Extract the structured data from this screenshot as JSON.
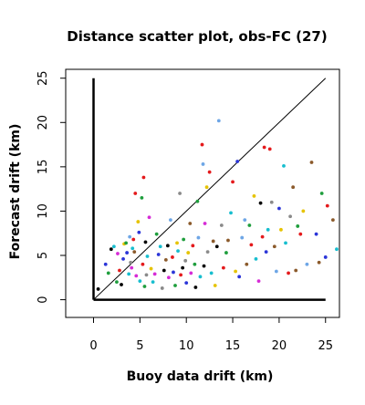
{
  "chart_data": {
    "type": "scatter",
    "title": "Distance scatter plot, obs-FC (27)",
    "xlabel": "Buoy data drift (km)",
    "ylabel": "Forecast drift (km)",
    "xlim": [
      -3,
      26.5
    ],
    "ylim": [
      -2,
      26
    ],
    "xticks": [
      0,
      5,
      10,
      15,
      20,
      25
    ],
    "yticks": [
      0,
      5,
      10,
      15,
      20,
      25
    ],
    "grid": false,
    "legend": "none",
    "reference_line": {
      "from": [
        0,
        0
      ],
      "to": [
        25,
        25
      ]
    },
    "axis_lines": [
      {
        "from": [
          0,
          0
        ],
        "to": [
          0,
          25
        ]
      },
      {
        "from": [
          0,
          0
        ],
        "to": [
          25,
          0
        ]
      }
    ],
    "colors": [
      "#000000",
      "#e41a1c",
      "#1f9e3d",
      "#2b35d8",
      "#17becf",
      "#d62bd6",
      "#e6c300",
      "#8a8a8a",
      "#6ea6e6",
      "#8b5a2b"
    ],
    "points": [
      [
        0.5,
        1.2,
        0
      ],
      [
        1.3,
        4.0,
        3
      ],
      [
        1.6,
        3.0,
        2
      ],
      [
        1.9,
        5.7,
        0
      ],
      [
        2.2,
        6.0,
        4
      ],
      [
        2.5,
        2.0,
        2
      ],
      [
        2.6,
        5.2,
        5
      ],
      [
        2.8,
        3.3,
        1
      ],
      [
        3.0,
        1.7,
        0
      ],
      [
        3.2,
        4.6,
        3
      ],
      [
        3.3,
        6.3,
        6
      ],
      [
        3.5,
        6.4,
        2
      ],
      [
        3.6,
        5.3,
        3
      ],
      [
        3.8,
        2.9,
        4
      ],
      [
        3.9,
        7.1,
        8
      ],
      [
        4.0,
        4.2,
        7
      ],
      [
        4.1,
        3.6,
        5
      ],
      [
        4.2,
        5.8,
        4
      ],
      [
        4.3,
        6.8,
        1
      ],
      [
        4.4,
        5.4,
        9
      ],
      [
        4.5,
        12.0,
        1
      ],
      [
        4.6,
        2.7,
        5
      ],
      [
        4.8,
        8.8,
        6
      ],
      [
        4.9,
        7.6,
        3
      ],
      [
        5.0,
        2.1,
        4
      ],
      [
        5.2,
        11.5,
        2
      ],
      [
        5.3,
        4.0,
        1
      ],
      [
        5.4,
        13.8,
        1
      ],
      [
        5.5,
        1.5,
        2
      ],
      [
        5.6,
        6.5,
        0
      ],
      [
        5.7,
        2.8,
        7
      ],
      [
        5.8,
        4.9,
        4
      ],
      [
        6.0,
        9.3,
        5
      ],
      [
        6.2,
        3.5,
        6
      ],
      [
        6.4,
        2.0,
        4
      ],
      [
        6.6,
        2.9,
        5
      ],
      [
        6.8,
        7.4,
        2
      ],
      [
        7.0,
        5.1,
        3
      ],
      [
        7.2,
        6.0,
        4
      ],
      [
        7.4,
        1.3,
        7
      ],
      [
        7.6,
        3.3,
        0
      ],
      [
        7.8,
        4.5,
        9
      ],
      [
        8.0,
        6.1,
        0
      ],
      [
        8.1,
        2.5,
        5
      ],
      [
        8.3,
        9.0,
        8
      ],
      [
        8.5,
        4.8,
        1
      ],
      [
        8.6,
        3.1,
        3
      ],
      [
        8.8,
        1.6,
        2
      ],
      [
        9.0,
        6.4,
        6
      ],
      [
        9.1,
        5.5,
        4
      ],
      [
        9.3,
        12.0,
        7
      ],
      [
        9.4,
        2.8,
        1
      ],
      [
        9.6,
        3.6,
        0
      ],
      [
        9.7,
        6.8,
        2
      ],
      [
        9.9,
        4.4,
        7
      ],
      [
        10.0,
        1.9,
        3
      ],
      [
        10.2,
        5.3,
        6
      ],
      [
        10.4,
        8.6,
        9
      ],
      [
        10.5,
        3.0,
        5
      ],
      [
        10.7,
        6.1,
        1
      ],
      [
        10.9,
        4.0,
        2
      ],
      [
        11.0,
        1.4,
        0
      ],
      [
        11.2,
        11.1,
        2
      ],
      [
        11.3,
        7.0,
        8
      ],
      [
        11.5,
        2.6,
        4
      ],
      [
        11.7,
        17.5,
        1
      ],
      [
        11.8,
        15.3,
        8
      ],
      [
        11.9,
        3.8,
        0
      ],
      [
        12.0,
        8.6,
        5
      ],
      [
        12.2,
        12.7,
        6
      ],
      [
        12.3,
        5.4,
        7
      ],
      [
        12.5,
        14.4,
        1
      ],
      [
        12.7,
        3.0,
        4
      ],
      [
        12.9,
        6.6,
        9
      ],
      [
        13.1,
        1.6,
        6
      ],
      [
        13.3,
        6.0,
        0
      ],
      [
        13.5,
        20.2,
        8
      ],
      [
        13.8,
        8.4,
        7
      ],
      [
        14.0,
        3.6,
        1
      ],
      [
        14.3,
        5.3,
        2
      ],
      [
        14.5,
        6.7,
        9
      ],
      [
        14.8,
        9.8,
        4
      ],
      [
        15.0,
        13.3,
        1
      ],
      [
        15.3,
        3.2,
        6
      ],
      [
        15.5,
        15.6,
        3
      ],
      [
        15.7,
        2.6,
        3
      ],
      [
        16.0,
        7.0,
        8
      ],
      [
        16.3,
        9.0,
        8
      ],
      [
        16.5,
        4.0,
        9
      ],
      [
        16.8,
        8.4,
        2
      ],
      [
        17.0,
        6.2,
        1
      ],
      [
        17.3,
        11.7,
        6
      ],
      [
        17.5,
        4.6,
        4
      ],
      [
        17.8,
        2.1,
        5
      ],
      [
        18.0,
        10.9,
        0
      ],
      [
        18.2,
        7.1,
        1
      ],
      [
        18.4,
        17.2,
        1
      ],
      [
        18.6,
        5.4,
        3
      ],
      [
        18.8,
        7.9,
        4
      ],
      [
        19.0,
        17.0,
        1
      ],
      [
        19.2,
        11.0,
        7
      ],
      [
        19.5,
        6.0,
        9
      ],
      [
        19.7,
        3.2,
        8
      ],
      [
        20.0,
        10.3,
        3
      ],
      [
        20.2,
        7.9,
        6
      ],
      [
        20.5,
        15.1,
        4
      ],
      [
        20.7,
        6.4,
        4
      ],
      [
        21.0,
        3.0,
        1
      ],
      [
        21.2,
        9.4,
        7
      ],
      [
        21.5,
        12.7,
        9
      ],
      [
        21.8,
        3.3,
        9
      ],
      [
        22.0,
        8.3,
        2
      ],
      [
        22.3,
        7.4,
        1
      ],
      [
        22.6,
        10.0,
        6
      ],
      [
        23.0,
        4.0,
        8
      ],
      [
        23.5,
        15.5,
        9
      ],
      [
        24.0,
        7.4,
        3
      ],
      [
        24.3,
        4.2,
        9
      ],
      [
        24.6,
        12.0,
        2
      ],
      [
        25.0,
        4.8,
        3
      ],
      [
        25.2,
        10.6,
        1
      ],
      [
        25.8,
        9.0,
        9
      ],
      [
        26.2,
        5.7,
        4
      ]
    ]
  }
}
